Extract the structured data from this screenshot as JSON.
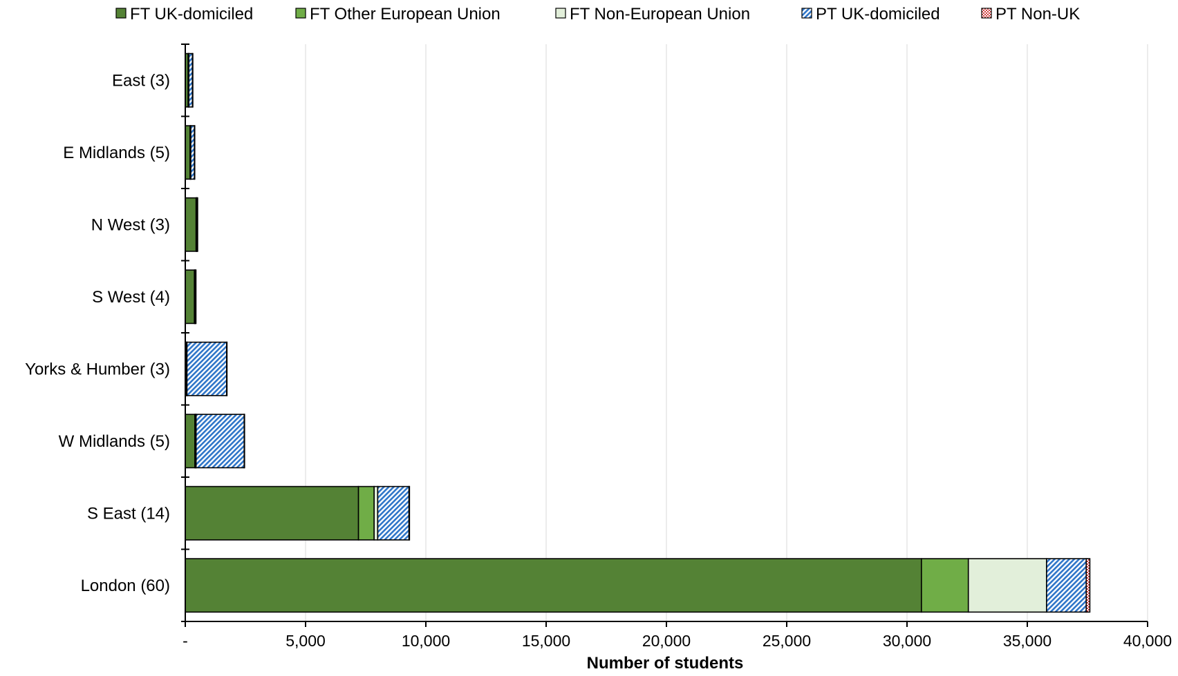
{
  "chart_data": {
    "type": "bar",
    "orientation": "horizontal",
    "stacked": true,
    "xlabel": "Number of students",
    "ylabel": "",
    "xlim": [
      0,
      40000
    ],
    "x_ticks": [
      0,
      5000,
      10000,
      15000,
      20000,
      25000,
      30000,
      35000,
      40000
    ],
    "x_tick_labels": [
      "-",
      "5,000",
      "10,000",
      "15,000",
      "20,000",
      "25,000",
      "30,000",
      "35,000",
      "40,000"
    ],
    "grid": "vertical",
    "legend_position": "top",
    "categories": [
      "East (3)",
      "E Midlands (5)",
      "N West (3)",
      "S West (4)",
      "Yorks & Humber (3)",
      "W Midlands (5)",
      "S East (14)",
      "London (60)"
    ],
    "series": [
      {
        "name": "FT UK-domiciled",
        "color": "#548235",
        "pattern": "solid",
        "values": [
          120,
          200,
          450,
          380,
          50,
          400,
          7200,
          30600
        ]
      },
      {
        "name": "FT Other European Union",
        "color": "#70AD47",
        "pattern": "solid",
        "values": [
          20,
          20,
          20,
          20,
          10,
          30,
          650,
          1950
        ]
      },
      {
        "name": "FT Non-European Union",
        "color": "#E2EFDA",
        "pattern": "solid",
        "values": [
          10,
          10,
          10,
          10,
          10,
          20,
          150,
          3250
        ]
      },
      {
        "name": "PT UK-domiciled",
        "color": "#5B9BD5",
        "pattern": "diagonal-hatch",
        "values": [
          150,
          150,
          20,
          20,
          1650,
          2000,
          1300,
          1650
        ]
      },
      {
        "name": "PT Non-UK",
        "color": "#E06666",
        "pattern": "dots",
        "values": [
          10,
          10,
          5,
          5,
          5,
          10,
          20,
          150
        ]
      }
    ]
  }
}
